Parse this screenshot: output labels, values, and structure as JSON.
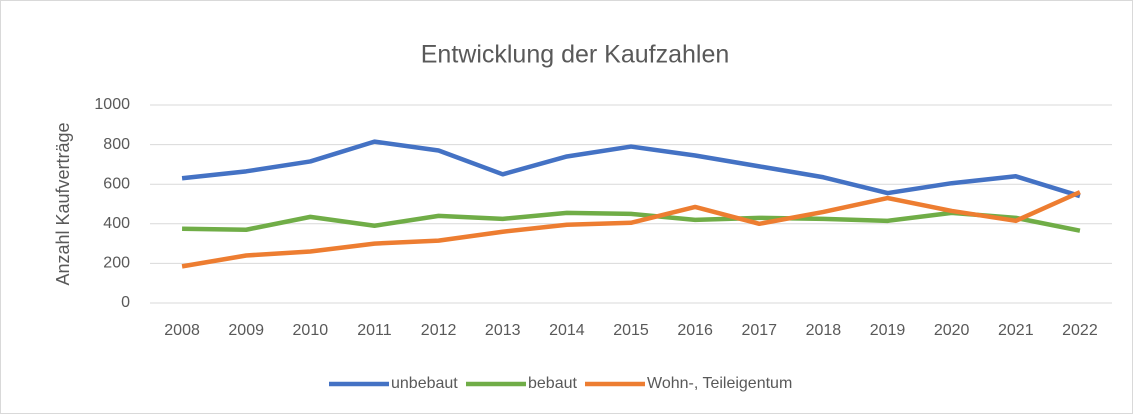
{
  "chart_data": {
    "type": "line",
    "title": "Entwicklung der Kaufzahlen",
    "y_label": "Anzahl Kaufverträge",
    "categories": [
      "2008",
      "2009",
      "2010",
      "2011",
      "2012",
      "2013",
      "2014",
      "2015",
      "2016",
      "2017",
      "2018",
      "2019",
      "2020",
      "2021",
      "2022"
    ],
    "series": [
      {
        "name": "unbebaut",
        "color": "#4472c4",
        "values": [
          630,
          665,
          715,
          815,
          770,
          650,
          740,
          790,
          745,
          690,
          635,
          555,
          605,
          640,
          540
        ]
      },
      {
        "name": "bebaut",
        "color": "#70ad47",
        "values": [
          375,
          370,
          435,
          390,
          440,
          425,
          455,
          450,
          420,
          430,
          425,
          415,
          455,
          430,
          365
        ]
      },
      {
        "name": "Wohn-, Teileigentum",
        "color": "#ed7d31",
        "values": [
          185,
          240,
          260,
          300,
          315,
          360,
          395,
          405,
          485,
          400,
          460,
          530,
          465,
          415,
          560
        ]
      }
    ],
    "ylim": [
      0,
      1000
    ],
    "yticks": [
      0,
      200,
      400,
      600,
      800,
      1000
    ],
    "grid": true,
    "legend": "bottom"
  }
}
